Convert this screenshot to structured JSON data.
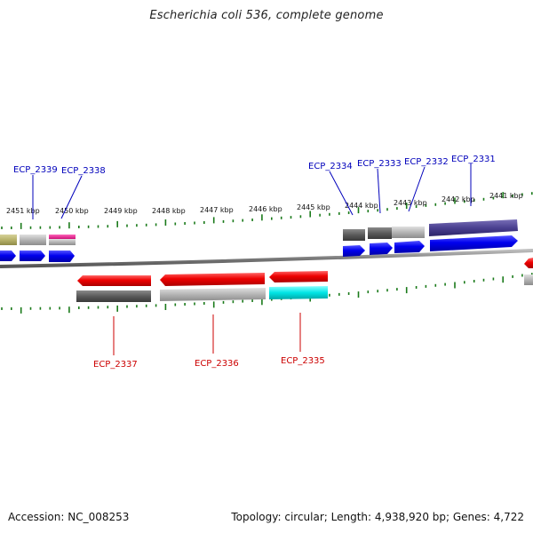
{
  "title": "Escherichia coli 536, complete genome",
  "footer": {
    "accession": "Accession: NC_008253",
    "topology": "Topology: circular; Length: 4,938,920 bp; Genes: 4,722"
  },
  "ruler_labels": [
    "2451 kbp",
    "2450 kbp",
    "2449 kbp",
    "2448 kbp",
    "2447 kbp",
    "2446 kbp",
    "2445 kbp",
    "2444 kbp",
    "2443 kbp",
    "2442 kbp",
    "2441 kbp"
  ],
  "genes_top": [
    "ECP_2339",
    "ECP_2338",
    "ECP_2334",
    "ECP_2333",
    "ECP_2332",
    "ECP_2331"
  ],
  "genes_bottom": [
    "ECP_2337",
    "ECP_2336",
    "ECP_2335"
  ],
  "colors": {
    "top_label": "#0000bb",
    "bottom_label": "#cc0000",
    "tick": "#1a7a1a",
    "backbone": "#7a7a7a",
    "cds_forward": "#0000ee",
    "cds_reverse": "#ee0000"
  }
}
